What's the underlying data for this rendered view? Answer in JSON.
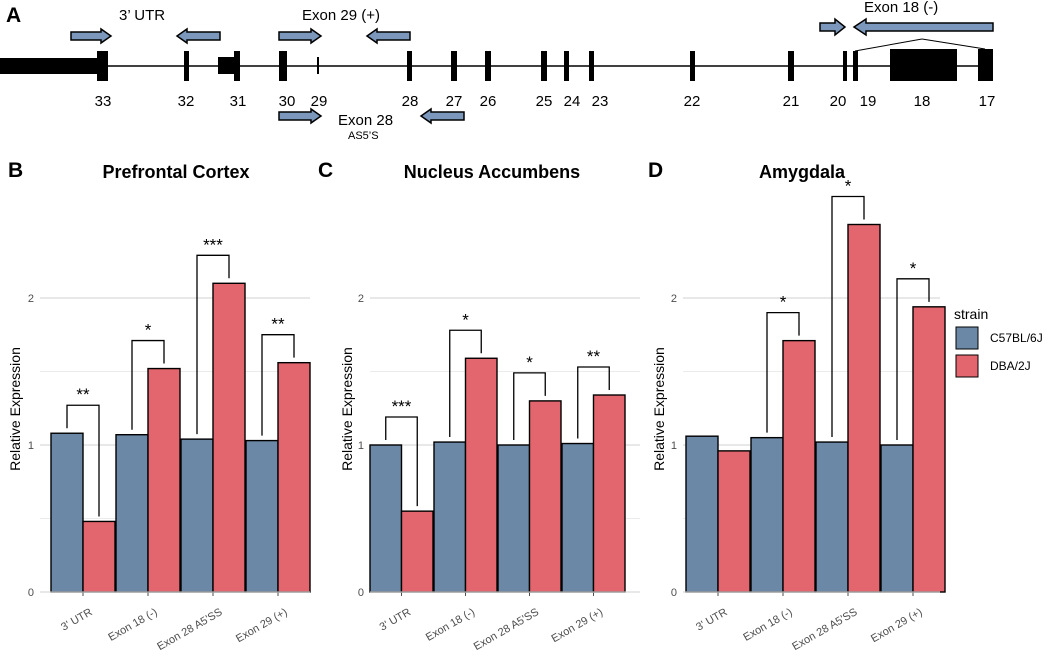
{
  "panel_labels": {
    "a": "A",
    "b": "B",
    "c": "C",
    "d": "D"
  },
  "gene_diagram": {
    "exon_numbers": [
      "33",
      "32",
      "31",
      "30",
      "29",
      "28",
      "27",
      "26",
      "25",
      "24",
      "23",
      "22",
      "21",
      "20",
      "19",
      "18",
      "17"
    ],
    "primer_labels": {
      "utr": "3’ UTR",
      "exon29": "Exon 29 (+)",
      "exon28": "Exon 28",
      "exon28_sub": "AS5’S",
      "exon18": "Exon 18 (-)"
    }
  },
  "colors": {
    "c57": "#6b88a6",
    "dba": "#e3666e",
    "grid": "#d9d9d9",
    "arrow": "#7b97bb"
  },
  "legend": {
    "title": "strain",
    "items": [
      "C57BL/6J",
      "DBA/2J"
    ]
  },
  "chart_data": [
    {
      "type": "bar",
      "title": "Prefrontal Cortex",
      "ylabel": "Relative Expression",
      "xlabel": "",
      "ylim": [
        0,
        2.5
      ],
      "yticks": [
        "0",
        "1",
        "2"
      ],
      "categories": [
        "3' UTR",
        "Exon 18 (-)",
        "Exon 28 A5'SS",
        "Exon 29 (+)"
      ],
      "series": [
        {
          "name": "C57BL/6J",
          "values": [
            1.08,
            1.07,
            1.04,
            1.03
          ]
        },
        {
          "name": "DBA/2J",
          "values": [
            0.48,
            1.52,
            2.1,
            1.56
          ]
        }
      ],
      "significance": [
        "**",
        "*",
        "***",
        "**"
      ]
    },
    {
      "type": "bar",
      "title": "Nucleus Accumbens",
      "ylabel": "Relative Expression",
      "xlabel": "",
      "ylim": [
        0,
        2.5
      ],
      "yticks": [
        "0",
        "1",
        "2"
      ],
      "categories": [
        "3' UTR",
        "Exon 18 (-)",
        "Exon 28 A5'SS",
        "Exon 29 (+)"
      ],
      "series": [
        {
          "name": "C57BL/6J",
          "values": [
            1.0,
            1.02,
            1.0,
            1.01
          ]
        },
        {
          "name": "DBA/2J",
          "values": [
            0.55,
            1.59,
            1.3,
            1.34
          ]
        }
      ],
      "significance": [
        "***",
        "*",
        "*",
        "**"
      ]
    },
    {
      "type": "bar",
      "title": "Amygdala",
      "ylabel": "Relative Expression",
      "xlabel": "",
      "ylim": [
        0,
        2.5
      ],
      "yticks": [
        "0",
        "1",
        "2"
      ],
      "categories": [
        "3' UTR",
        "Exon 18 (-)",
        "Exon 28 A5'SS",
        "Exon 29 (+)"
      ],
      "series": [
        {
          "name": "C57BL/6J",
          "values": [
            1.06,
            1.05,
            1.02,
            1.0
          ]
        },
        {
          "name": "DBA/2J",
          "values": [
            0.96,
            1.71,
            2.5,
            1.94
          ]
        }
      ],
      "significance": [
        "",
        "*",
        "*",
        "*"
      ]
    }
  ]
}
